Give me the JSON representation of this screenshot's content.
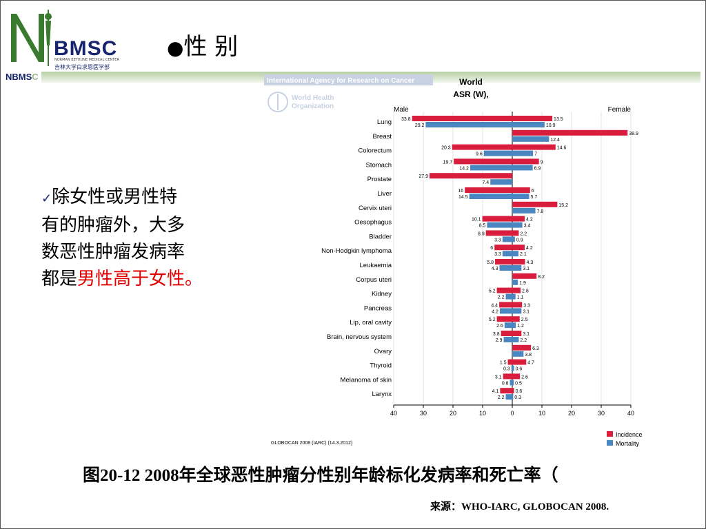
{
  "logo": {
    "text": "BMSC",
    "subtitle": "NORMAN BETHUNE MEDICAL CENTER",
    "chinese": "吉林大学白求恩医学部",
    "band_label_prefix": "NBMS",
    "band_label_suffix": "C"
  },
  "heading": {
    "bullet": "●",
    "title": "性 别"
  },
  "body": {
    "check_mark": "✓",
    "line1": "除女性或男性特",
    "line2": "有的肿瘤外，大多",
    "line3": "数恶性肿瘤发病率",
    "line4_plain": "都是",
    "line4_red": "男性高于女性。"
  },
  "caption": "图20-12 2008年全球恶性肿瘤分性别年龄标化发病率和死亡率（",
  "source": "来源：WHO-IARC, GLOBOCAN 2008.",
  "chart_data": {
    "type": "bar",
    "orientation": "horizontal-butterfly",
    "header_agency": "International Agency for Research on Cancer",
    "header_org_line1": "World Health",
    "header_org_line2": "Organization",
    "title_line1": "World",
    "title_line2": "ASR (W),",
    "left_label": "Male",
    "right_label": "Female",
    "xlim": [
      -40,
      40
    ],
    "xticks": [
      "40",
      "30",
      "20",
      "10",
      "0",
      "10",
      "20",
      "30",
      "40"
    ],
    "footnote": "GLOBOCAN 2008 (IARC) (14.3.2012)",
    "categories": [
      "Lung",
      "Breast",
      "Colorectum",
      "Stomach",
      "Prostate",
      "Liver",
      "Cervix uteri",
      "Oesophagus",
      "Bladder",
      "Non-Hodgkin lymphoma",
      "Leukaemia",
      "Corpus uteri",
      "Kidney",
      "Pancreas",
      "Lip, oral cavity",
      "Brain, nervous system",
      "Ovary",
      "Thyroid",
      "Melanoma of skin",
      "Larynx"
    ],
    "series": [
      {
        "name": "Incidence",
        "sex": "Male",
        "color": "#d81e3c",
        "values": [
          33.8,
          null,
          20.3,
          19.7,
          27.9,
          16,
          null,
          10.1,
          8.9,
          6,
          5.8,
          null,
          5.2,
          4.4,
          5.2,
          3.8,
          null,
          1.5,
          3.1,
          4.1
        ]
      },
      {
        "name": "Mortality",
        "sex": "Male",
        "color": "#4a86c0",
        "values": [
          29.2,
          null,
          9.6,
          14.2,
          7.4,
          14.5,
          null,
          8.5,
          3.3,
          3.3,
          4.3,
          null,
          2.2,
          4.2,
          2.6,
          2.9,
          null,
          0.3,
          0.8,
          2.2
        ]
      },
      {
        "name": "Incidence",
        "sex": "Female",
        "color": "#d81e3c",
        "values": [
          13.5,
          38.9,
          14.6,
          9,
          null,
          6,
          15.2,
          4.2,
          2.2,
          4.2,
          4.3,
          8.2,
          2.8,
          3.3,
          2.5,
          3.1,
          6.3,
          4.7,
          2.6,
          0.6
        ]
      },
      {
        "name": "Mortality",
        "sex": "Female",
        "color": "#4a86c0",
        "values": [
          10.9,
          12.4,
          7,
          6.9,
          null,
          5.7,
          7.8,
          3.4,
          0.9,
          2.1,
          3.1,
          1.9,
          1.1,
          3.1,
          1.2,
          2.2,
          3.8,
          0.6,
          0.5,
          0.3
        ]
      }
    ],
    "legend": [
      {
        "label": "Incidence",
        "color": "#d81e3c"
      },
      {
        "label": "Mortality",
        "color": "#4a86c0"
      }
    ],
    "legend_position": "bottom-right"
  }
}
